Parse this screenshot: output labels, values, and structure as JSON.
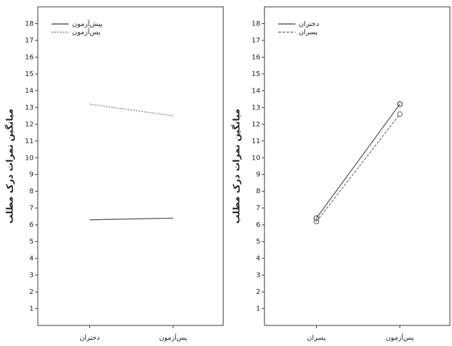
{
  "chart_data": [
    {
      "type": "line",
      "y_label": "میانگین نمرات درک مطلب",
      "categories": [
        "دختران",
        "پس‌آزمون"
      ],
      "series": [
        {
          "name": "پیش‌آزمون",
          "color": "#555555",
          "style": "solid",
          "values": [
            6.3,
            6.4
          ]
        },
        {
          "name": "پس‌آزمون",
          "color": "#777777",
          "style": "dotted",
          "values": [
            13.2,
            12.5
          ]
        }
      ],
      "ylim": [
        0,
        19
      ],
      "yticks": [
        1,
        2,
        3,
        4,
        5,
        6,
        7,
        8,
        9,
        10,
        11,
        12,
        13,
        14,
        15,
        16,
        17,
        18
      ],
      "markers": false,
      "legend": "top-left"
    },
    {
      "type": "line",
      "y_label": "میانگین نمرات درک مطلب",
      "categories": [
        "پسران",
        "پس‌آزمون"
      ],
      "series": [
        {
          "name": "دختران",
          "color": "#555555",
          "style": "solid",
          "values": [
            6.4,
            13.2
          ]
        },
        {
          "name": "پسران",
          "color": "#777777",
          "style": "dashed",
          "values": [
            6.2,
            12.6
          ]
        }
      ],
      "ylim": [
        0,
        19
      ],
      "yticks": [
        1,
        2,
        3,
        4,
        5,
        6,
        7,
        8,
        9,
        10,
        11,
        12,
        13,
        14,
        15,
        16,
        17,
        18
      ],
      "markers": true,
      "legend": "top-left"
    }
  ]
}
